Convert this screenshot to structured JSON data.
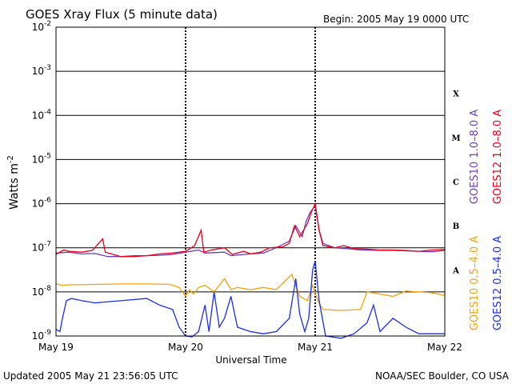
{
  "chart_data": {
    "type": "line",
    "title": "GOES Xray Flux (5 minute data)",
    "begin_label": "Begin:  2005 May 19 0000 UTC",
    "xlabel": "Universal Time",
    "ylabel": "Watts m",
    "ylabel_sup": "-2",
    "y_scale": "log",
    "ylim": [
      1e-09,
      0.01
    ],
    "xlim": [
      0,
      3
    ],
    "x_ticks": [
      {
        "x": 0,
        "label": "May 19"
      },
      {
        "x": 1,
        "label": "May 20"
      },
      {
        "x": 2,
        "label": "May 21"
      },
      {
        "x": 3,
        "label": "May 22"
      }
    ],
    "y_ticks": [
      {
        "exp": -2,
        "base": "10",
        "sup": "-2"
      },
      {
        "exp": -3,
        "base": "10",
        "sup": "-3"
      },
      {
        "exp": -4,
        "base": "10",
        "sup": "-4"
      },
      {
        "exp": -5,
        "base": "10",
        "sup": "-5"
      },
      {
        "exp": -6,
        "base": "10",
        "sup": "-6"
      },
      {
        "exp": -7,
        "base": "10",
        "sup": "-7"
      },
      {
        "exp": -8,
        "base": "10",
        "sup": "-8"
      },
      {
        "exp": -9,
        "base": "10",
        "sup": "-9"
      }
    ],
    "flare_classes": [
      {
        "label": "X",
        "exp": -3.5
      },
      {
        "label": "M",
        "exp": -4.5
      },
      {
        "label": "C",
        "exp": -5.5
      },
      {
        "label": "B",
        "exp": -6.5
      },
      {
        "label": "A",
        "exp": -7.5
      }
    ],
    "grid": true,
    "series": [
      {
        "name": "GOES10 1.0–8.0 A",
        "color": "#6a3db8",
        "points": [
          [
            0,
            -7.12
          ],
          [
            0.1,
            -7.1
          ],
          [
            0.2,
            -7.14
          ],
          [
            0.3,
            -7.13
          ],
          [
            0.4,
            -7.2
          ],
          [
            0.5,
            -7.2
          ],
          [
            0.6,
            -7.18
          ],
          [
            0.7,
            -7.18
          ],
          [
            0.8,
            -7.17
          ],
          [
            0.9,
            -7.15
          ],
          [
            1.0,
            -7.1
          ],
          [
            1.1,
            -7.05
          ],
          [
            1.15,
            -7.12
          ],
          [
            1.3,
            -7.1
          ],
          [
            1.35,
            -7.18
          ],
          [
            1.5,
            -7.14
          ],
          [
            1.6,
            -7.12
          ],
          [
            1.7,
            -7.0
          ],
          [
            1.8,
            -6.85
          ],
          [
            1.85,
            -6.5
          ],
          [
            1.9,
            -6.75
          ],
          [
            1.93,
            -6.4
          ],
          [
            1.96,
            -6.2
          ],
          [
            2.0,
            -6.05
          ],
          [
            2.03,
            -6.6
          ],
          [
            2.06,
            -6.9
          ],
          [
            2.15,
            -7.0
          ],
          [
            2.25,
            -7.02
          ],
          [
            2.35,
            -7.05
          ],
          [
            2.5,
            -7.06
          ],
          [
            2.6,
            -7.06
          ],
          [
            2.7,
            -7.07
          ],
          [
            2.8,
            -7.08
          ],
          [
            2.9,
            -7.09
          ],
          [
            3.0,
            -7.06
          ]
        ]
      },
      {
        "name": "GOES12 1.0–8.0 A",
        "color": "#e8001c",
        "points": [
          [
            0,
            -7.15
          ],
          [
            0.06,
            -7.05
          ],
          [
            0.1,
            -7.08
          ],
          [
            0.2,
            -7.1
          ],
          [
            0.28,
            -7.06
          ],
          [
            0.36,
            -6.8
          ],
          [
            0.38,
            -7.1
          ],
          [
            0.5,
            -7.2
          ],
          [
            0.6,
            -7.2
          ],
          [
            0.7,
            -7.18
          ],
          [
            0.8,
            -7.14
          ],
          [
            0.9,
            -7.12
          ],
          [
            1.0,
            -7.08
          ],
          [
            1.07,
            -6.95
          ],
          [
            1.12,
            -6.6
          ],
          [
            1.14,
            -7.1
          ],
          [
            1.2,
            -7.05
          ],
          [
            1.3,
            -7.0
          ],
          [
            1.36,
            -7.15
          ],
          [
            1.45,
            -7.08
          ],
          [
            1.5,
            -7.14
          ],
          [
            1.58,
            -7.1
          ],
          [
            1.65,
            -7.0
          ],
          [
            1.75,
            -6.98
          ],
          [
            1.8,
            -6.9
          ],
          [
            1.84,
            -6.5
          ],
          [
            1.88,
            -6.75
          ],
          [
            1.94,
            -6.45
          ],
          [
            1.97,
            -6.2
          ],
          [
            2.0,
            -6.0
          ],
          [
            2.03,
            -6.6
          ],
          [
            2.06,
            -6.95
          ],
          [
            2.15,
            -7.0
          ],
          [
            2.22,
            -6.95
          ],
          [
            2.3,
            -7.02
          ],
          [
            2.4,
            -7.03
          ],
          [
            2.5,
            -7.05
          ],
          [
            2.6,
            -7.05
          ],
          [
            2.7,
            -7.06
          ],
          [
            2.8,
            -7.08
          ],
          [
            2.9,
            -7.05
          ],
          [
            3.0,
            -7.04
          ]
        ]
      },
      {
        "name": "GOES10 0.5–4.0 A",
        "color": "#f5a20a",
        "points": [
          [
            0,
            -7.82
          ],
          [
            0.05,
            -7.85
          ],
          [
            0.1,
            -7.84
          ],
          [
            0.3,
            -7.83
          ],
          [
            0.5,
            -7.82
          ],
          [
            0.7,
            -7.82
          ],
          [
            0.88,
            -7.83
          ],
          [
            0.95,
            -7.9
          ],
          [
            1.0,
            -8.1
          ],
          [
            1.03,
            -7.95
          ],
          [
            1.06,
            -8.05
          ],
          [
            1.1,
            -7.9
          ],
          [
            1.15,
            -7.85
          ],
          [
            1.22,
            -8.0
          ],
          [
            1.3,
            -7.7
          ],
          [
            1.35,
            -7.95
          ],
          [
            1.4,
            -7.9
          ],
          [
            1.5,
            -7.95
          ],
          [
            1.6,
            -7.9
          ],
          [
            1.7,
            -7.95
          ],
          [
            1.82,
            -7.6
          ],
          [
            1.88,
            -8.1
          ],
          [
            1.94,
            -8.2
          ],
          [
            1.98,
            -7.85
          ],
          [
            2.02,
            -8.2
          ],
          [
            2.06,
            -8.4
          ],
          [
            2.2,
            -8.42
          ],
          [
            2.35,
            -8.4
          ],
          [
            2.4,
            -8.0
          ],
          [
            2.5,
            -8.05
          ],
          [
            2.6,
            -8.1
          ],
          [
            2.7,
            -7.98
          ],
          [
            2.8,
            -8.0
          ],
          [
            2.9,
            -8.02
          ],
          [
            3.0,
            -8.08
          ]
        ]
      },
      {
        "name": "GOES12 0.5–4.0 A",
        "color": "#1a2ee8",
        "points": [
          [
            0,
            -8.85
          ],
          [
            0.03,
            -8.9
          ],
          [
            0.05,
            -8.6
          ],
          [
            0.08,
            -8.2
          ],
          [
            0.12,
            -8.15
          ],
          [
            0.2,
            -8.2
          ],
          [
            0.3,
            -8.25
          ],
          [
            0.5,
            -8.2
          ],
          [
            0.7,
            -8.15
          ],
          [
            0.8,
            -8.3
          ],
          [
            0.9,
            -8.4
          ],
          [
            0.95,
            -8.8
          ],
          [
            1.0,
            -9.0
          ],
          [
            1.05,
            -9.02
          ],
          [
            1.1,
            -8.9
          ],
          [
            1.15,
            -8.3
          ],
          [
            1.18,
            -8.9
          ],
          [
            1.22,
            -8.0
          ],
          [
            1.26,
            -8.8
          ],
          [
            1.3,
            -8.6
          ],
          [
            1.35,
            -8.1
          ],
          [
            1.4,
            -8.8
          ],
          [
            1.5,
            -8.9
          ],
          [
            1.6,
            -8.95
          ],
          [
            1.7,
            -8.9
          ],
          [
            1.8,
            -8.6
          ],
          [
            1.85,
            -7.7
          ],
          [
            1.88,
            -8.5
          ],
          [
            1.92,
            -8.9
          ],
          [
            1.95,
            -8.6
          ],
          [
            1.98,
            -7.5
          ],
          [
            2.0,
            -7.3
          ],
          [
            2.03,
            -8.2
          ],
          [
            2.08,
            -9.0
          ],
          [
            2.2,
            -9.05
          ],
          [
            2.3,
            -8.95
          ],
          [
            2.4,
            -8.7
          ],
          [
            2.45,
            -8.3
          ],
          [
            2.5,
            -8.9
          ],
          [
            2.6,
            -8.6
          ],
          [
            2.7,
            -8.8
          ],
          [
            2.8,
            -8.95
          ],
          [
            2.9,
            -8.95
          ],
          [
            3.0,
            -8.95
          ]
        ]
      }
    ]
  },
  "footer": {
    "updated": "Updated 2005 May 21 23:56:05 UTC",
    "credit": "NOAA/SEC Boulder, CO USA"
  }
}
